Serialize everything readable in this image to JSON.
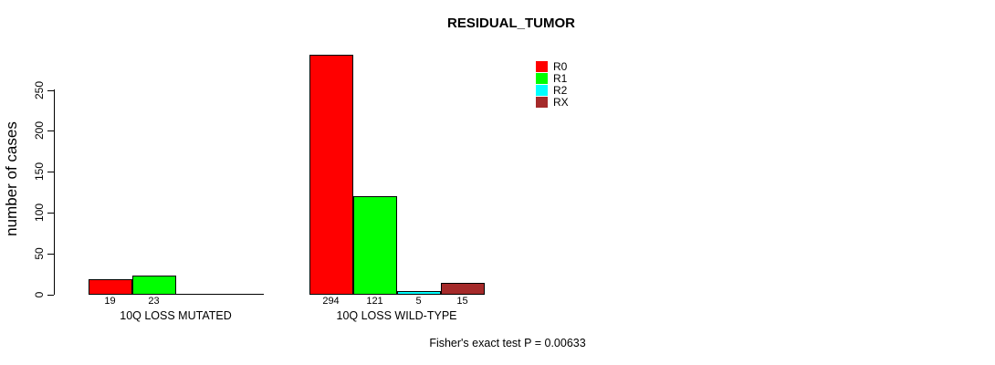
{
  "chart_data": {
    "type": "bar",
    "title": "RESIDUAL_TUMOR",
    "ylabel": "number of cases",
    "xlabel": "",
    "categories": [
      "10Q LOSS MUTATED",
      "10Q LOSS WILD-TYPE"
    ],
    "series": [
      {
        "name": "R0",
        "color": "#FF0000",
        "values": [
          19,
          294
        ]
      },
      {
        "name": "R1",
        "color": "#00FF00",
        "values": [
          23,
          121
        ]
      },
      {
        "name": "R2",
        "color": "#00FFFF",
        "values": [
          0,
          5
        ]
      },
      {
        "name": "RX",
        "color": "#A52A2A",
        "values": [
          0,
          15
        ]
      }
    ],
    "ylim": [
      0,
      294
    ],
    "yticks": [
      0,
      50,
      100,
      150,
      200,
      250
    ],
    "grid": false,
    "legend_position": "top-right",
    "bar_value_labels_shown": true,
    "zero_value_labels_hidden": true,
    "annotation": "Fisher's exact test P = 0.00633"
  }
}
